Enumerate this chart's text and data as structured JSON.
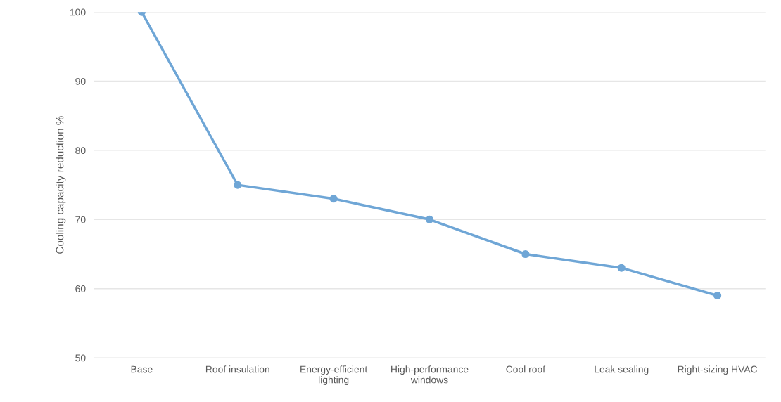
{
  "chart_data": {
    "type": "line",
    "ylabel": "Cooling capacity reduction %",
    "categories": [
      "Base",
      "Roof insulation",
      "Energy-efficient lighting",
      "High-performance windows",
      "Cool roof",
      "Leak sealing",
      "Right-sizing HVAC"
    ],
    "series": [
      {
        "color": "#6fa6d6",
        "values": [
          100,
          75,
          73,
          70,
          65,
          63,
          59
        ]
      }
    ],
    "ylim": [
      50,
      100
    ],
    "yticks": [
      50,
      60,
      70,
      80,
      90,
      100
    ],
    "grid": "y",
    "marker": "circle",
    "line_style": "solid"
  }
}
